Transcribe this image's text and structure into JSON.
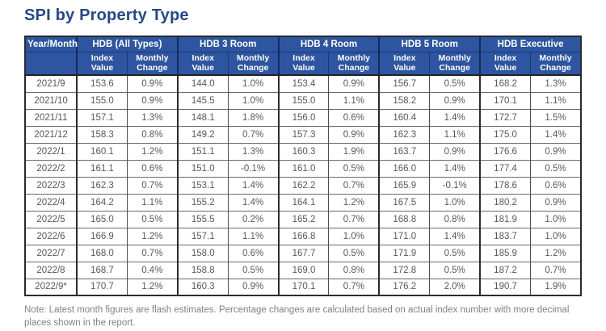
{
  "page": {
    "title": "SPI by Property Type",
    "note": "Note: Latest month figures are flash estimates. Percentage changes are calculated based on actual index number with more decimal places shown in the report."
  },
  "colors": {
    "header_blue": "#2D55A2",
    "header_border_navy": "#1C386F",
    "title_blue": "#26478D",
    "body_text_gray": "#58595B",
    "note_gray": "#7E8183",
    "grid_dark": "#2B2B2B"
  },
  "table": {
    "corner_label": "Year/Month",
    "groups": [
      "HDB (All Types)",
      "HDB 3 Room",
      "HDB 4 Room",
      "HDB 5 Room",
      "HDB Executive"
    ],
    "sub_index": "Index\nValue",
    "sub_change": "Monthly\nChange",
    "rows": [
      {
        "month": "2021/9",
        "values": [
          "153.6",
          "0.9%",
          "144.0",
          "1.0%",
          "153.4",
          "0.9%",
          "156.7",
          "0.5%",
          "168.2",
          "1.3%"
        ]
      },
      {
        "month": "2021/10",
        "values": [
          "155.0",
          "0.9%",
          "145.5",
          "1.0%",
          "155.0",
          "1.1%",
          "158.2",
          "0.9%",
          "170.1",
          "1.1%"
        ]
      },
      {
        "month": "2021/11",
        "values": [
          "157.1",
          "1.3%",
          "148.1",
          "1.8%",
          "156.0",
          "0.6%",
          "160.4",
          "1.4%",
          "172.7",
          "1.5%"
        ]
      },
      {
        "month": "2021/12",
        "values": [
          "158.3",
          "0.8%",
          "149.2",
          "0.7%",
          "157.3",
          "0.9%",
          "162.3",
          "1.1%",
          "175.0",
          "1.4%"
        ]
      },
      {
        "month": "2022/1",
        "values": [
          "160.1",
          "1.2%",
          "151.1",
          "1.3%",
          "160.3",
          "1.9%",
          "163.7",
          "0.9%",
          "176.6",
          "0.9%"
        ]
      },
      {
        "month": "2022/2",
        "values": [
          "161.1",
          "0.6%",
          "151.0",
          "-0.1%",
          "161.0",
          "0.5%",
          "166.0",
          "1.4%",
          "177.4",
          "0.5%"
        ]
      },
      {
        "month": "2022/3",
        "values": [
          "162.3",
          "0.7%",
          "153.1",
          "1.4%",
          "162.2",
          "0.7%",
          "165.9",
          "-0.1%",
          "178.6",
          "0.6%"
        ]
      },
      {
        "month": "2022/4",
        "values": [
          "164.2",
          "1.1%",
          "155.2",
          "1.4%",
          "164.1",
          "1.2%",
          "167.5",
          "1.0%",
          "180.2",
          "0.9%"
        ]
      },
      {
        "month": "2022/5",
        "values": [
          "165.0",
          "0.5%",
          "155.5",
          "0.2%",
          "165.2",
          "0.7%",
          "168.8",
          "0.8%",
          "181.9",
          "1.0%"
        ]
      },
      {
        "month": "2022/6",
        "values": [
          "166.9",
          "1.2%",
          "157.1",
          "1.1%",
          "166.8",
          "1.0%",
          "171.0",
          "1.4%",
          "183.7",
          "1.0%"
        ]
      },
      {
        "month": "2022/7",
        "values": [
          "168.0",
          "0.7%",
          "158.0",
          "0.6%",
          "167.7",
          "0.5%",
          "171.9",
          "0.5%",
          "185.9",
          "1.2%"
        ]
      },
      {
        "month": "2022/8",
        "values": [
          "168.7",
          "0.4%",
          "158.8",
          "0.5%",
          "169.0",
          "0.8%",
          "172.8",
          "0.5%",
          "187.2",
          "0.7%"
        ]
      },
      {
        "month": "2022/9*",
        "values": [
          "170.7",
          "1.2%",
          "160.3",
          "0.9%",
          "170.1",
          "0.7%",
          "176.2",
          "2.0%",
          "190.7",
          "1.9%"
        ]
      }
    ]
  }
}
